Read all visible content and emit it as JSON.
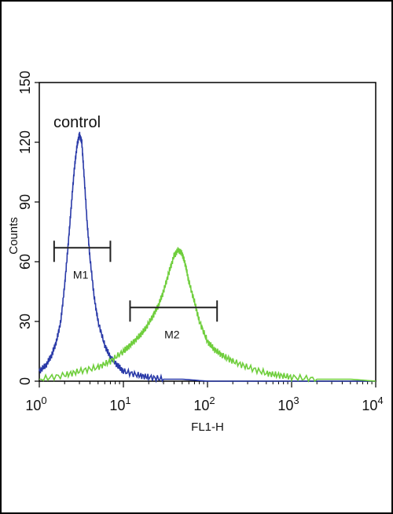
{
  "chart_data": {
    "type": "line",
    "xlabel": "FL1-H",
    "ylabel": "Counts",
    "xscale": "log",
    "xlim": [
      1,
      10000
    ],
    "ylim": [
      0,
      150
    ],
    "x_ticks": [
      {
        "value": 1,
        "base": "10",
        "exp": "0"
      },
      {
        "value": 10,
        "base": "10",
        "exp": "1"
      },
      {
        "value": 100,
        "base": "10",
        "exp": "2"
      },
      {
        "value": 1000,
        "base": "10",
        "exp": "3"
      },
      {
        "value": 10000,
        "base": "10",
        "exp": "4"
      }
    ],
    "y_ticks": [
      0,
      30,
      60,
      90,
      120,
      150
    ],
    "annotation": "control",
    "series": [
      {
        "color": "#2a3aa8",
        "x": [
          1,
          1.2,
          1.4,
          1.6,
          1.8,
          2.0,
          2.2,
          2.4,
          2.6,
          2.8,
          3.0,
          3.2,
          3.4,
          3.7,
          4.0,
          4.5,
          5.0,
          6.0,
          7.0,
          8.5,
          10,
          15,
          20,
          30,
          50,
          100,
          1000,
          10000
        ],
        "y": [
          5,
          8,
          13,
          20,
          30,
          48,
          68,
          88,
          106,
          118,
          124,
          120,
          104,
          80,
          62,
          42,
          30,
          18,
          12,
          8,
          5,
          3,
          2,
          1,
          1,
          0,
          0,
          0
        ]
      },
      {
        "color": "#6fce3c",
        "x": [
          1,
          2,
          3,
          5,
          7,
          10,
          12,
          15,
          18,
          22,
          26,
          30,
          35,
          40,
          45,
          50,
          55,
          60,
          70,
          80,
          100,
          120,
          150,
          200,
          300,
          500,
          700,
          1000,
          2000,
          5000,
          10000
        ],
        "y": [
          1,
          3,
          5,
          7,
          10,
          15,
          18,
          22,
          26,
          32,
          38,
          45,
          55,
          63,
          66,
          64,
          58,
          50,
          40,
          30,
          20,
          16,
          13,
          10,
          7,
          4,
          3,
          2,
          1,
          1,
          0
        ]
      }
    ],
    "gates": [
      {
        "label": "M1",
        "x1": 1.5,
        "x2": 7.0,
        "y": 67
      },
      {
        "label": "M2",
        "x1": 12,
        "x2": 130,
        "y": 37
      }
    ]
  }
}
